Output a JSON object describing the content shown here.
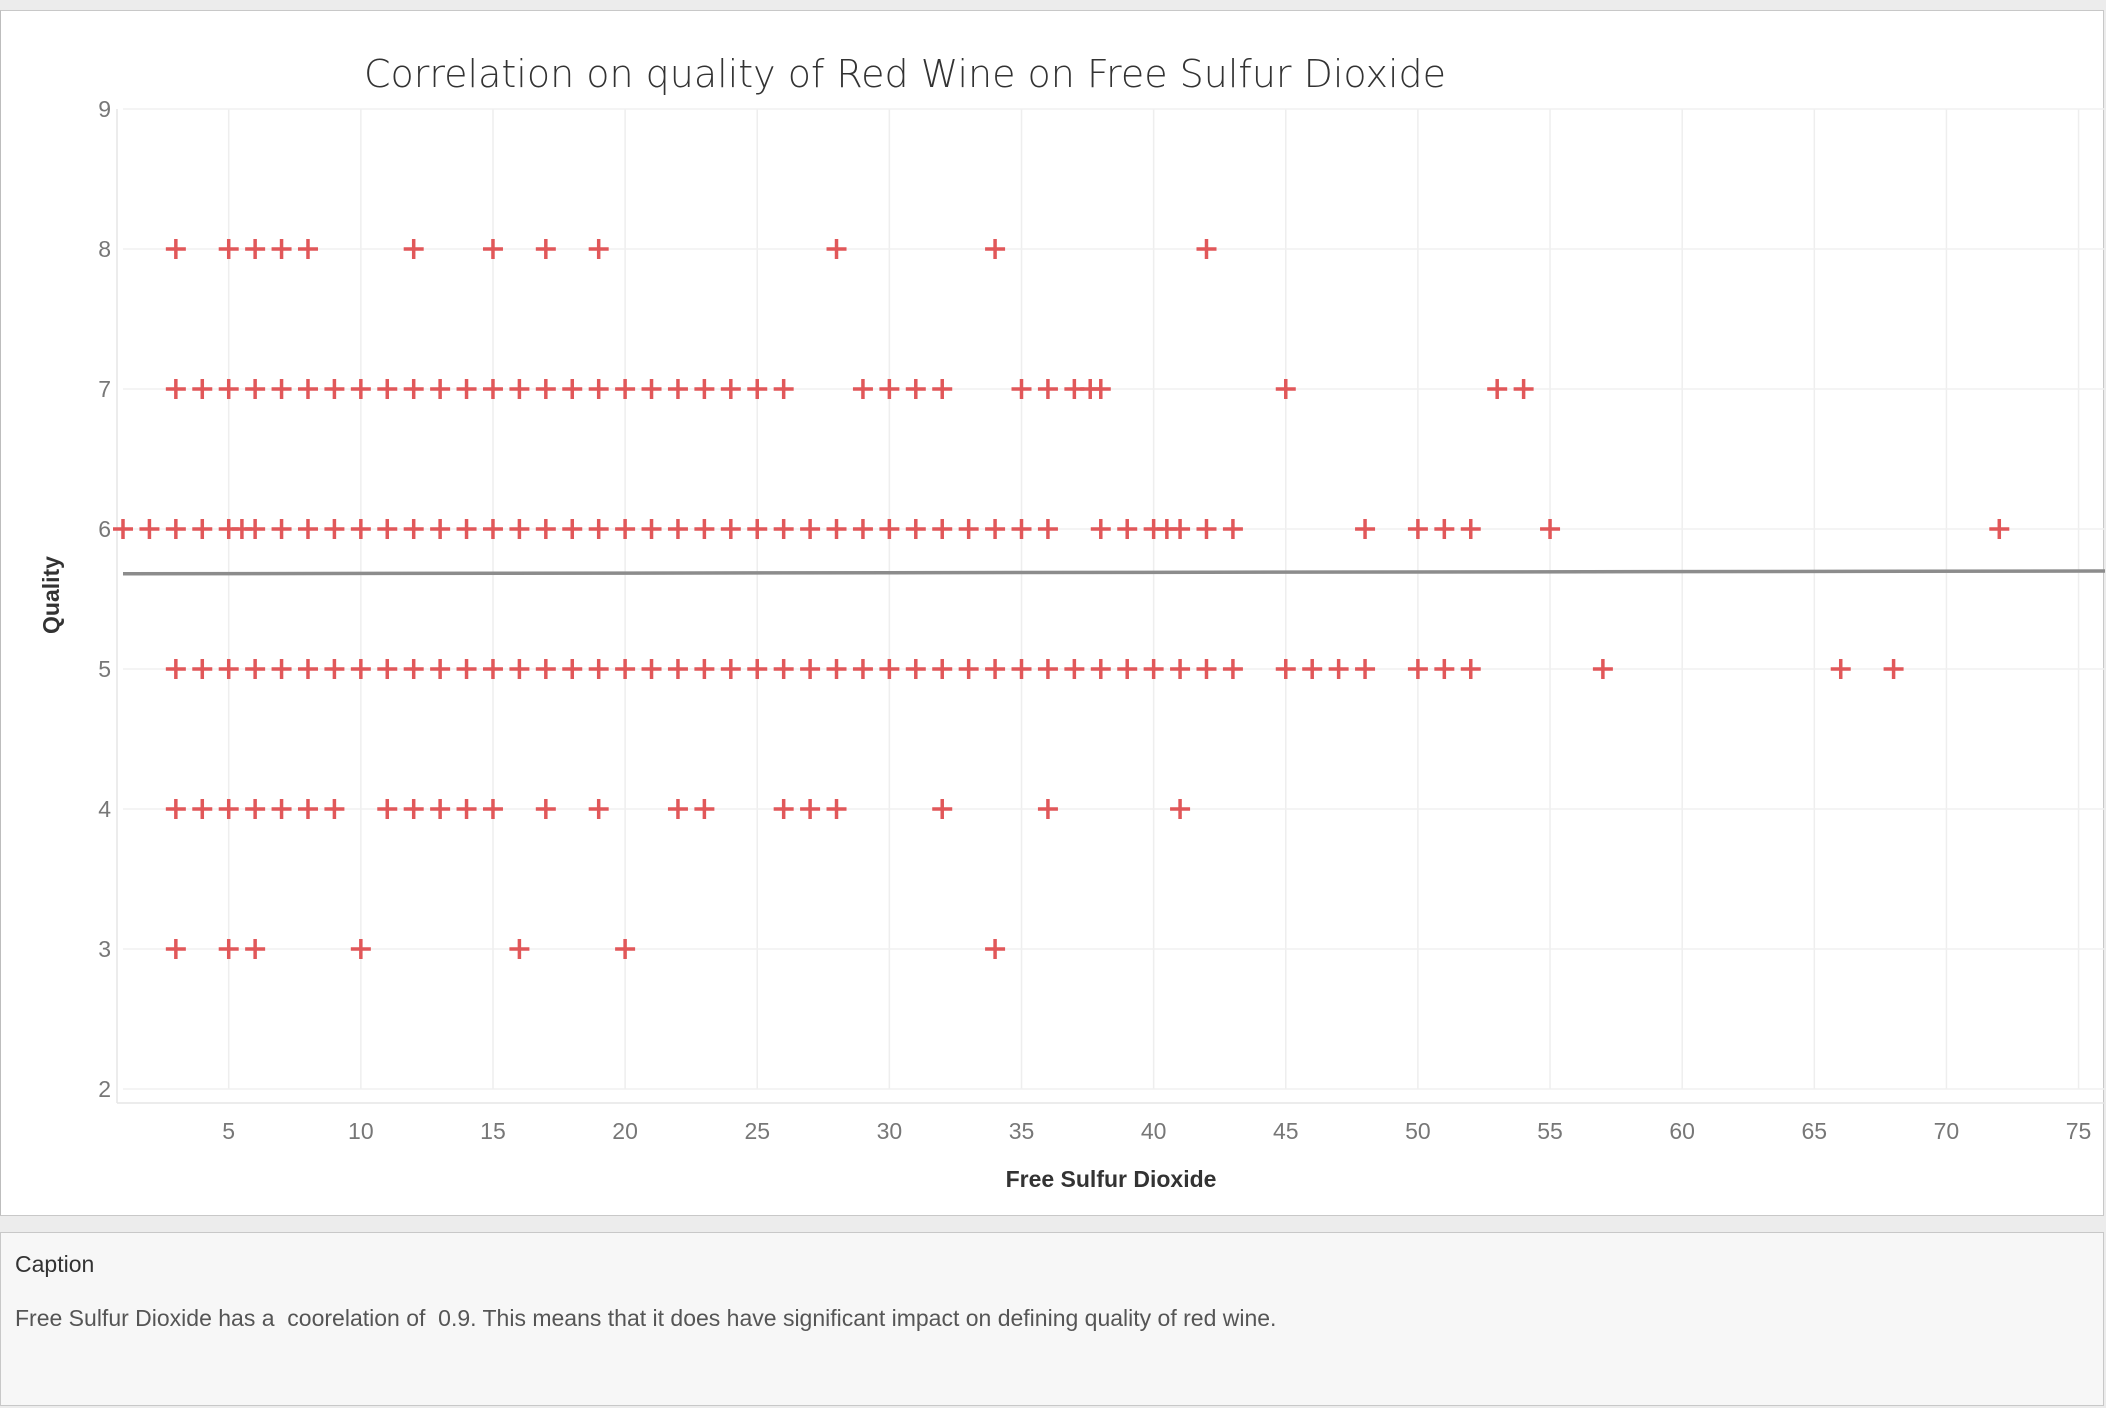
{
  "chart_data": {
    "type": "scatter",
    "title": "Correlation on quality of Red Wine on Free Sulfur Dioxide",
    "xlabel": "Free Sulfur Dioxide",
    "ylabel": "Quality",
    "xlim": [
      1,
      76
    ],
    "ylim": [
      2,
      9
    ],
    "xticks": [
      5,
      10,
      15,
      20,
      25,
      30,
      35,
      40,
      45,
      50,
      55,
      60,
      65,
      70,
      75
    ],
    "yticks": [
      2,
      3,
      4,
      5,
      6,
      7,
      8,
      9
    ],
    "grid": true,
    "marker": "plus",
    "marker_color": "#e15759",
    "trend_line": {
      "x": [
        1,
        76
      ],
      "y": [
        5.68,
        5.7
      ],
      "color": "#8c8c8c"
    },
    "points": [
      {
        "quality": 8,
        "x": [
          3,
          5,
          6,
          7,
          8,
          12,
          15,
          17,
          19,
          28,
          34,
          42
        ]
      },
      {
        "quality": 7,
        "x": [
          3,
          4,
          5,
          6,
          7,
          8,
          9,
          10,
          11,
          12,
          13,
          14,
          15,
          16,
          17,
          18,
          19,
          20,
          21,
          22,
          23,
          24,
          25,
          26,
          29,
          30,
          31,
          32,
          35,
          36,
          37,
          37.6,
          38,
          45,
          53,
          54
        ]
      },
      {
        "quality": 6,
        "x": [
          1,
          2,
          3,
          4,
          5,
          5.5,
          6,
          7,
          8,
          9,
          10,
          11,
          12,
          13,
          14,
          15,
          16,
          17,
          18,
          19,
          20,
          21,
          22,
          23,
          24,
          25,
          26,
          27,
          28,
          29,
          30,
          31,
          32,
          33,
          34,
          35,
          36,
          38,
          39,
          40,
          40.5,
          41,
          42,
          43,
          48,
          50,
          51,
          52,
          55,
          72
        ]
      },
      {
        "quality": 5,
        "x": [
          3,
          4,
          5,
          6,
          7,
          8,
          9,
          10,
          11,
          12,
          13,
          14,
          15,
          16,
          17,
          18,
          19,
          20,
          21,
          22,
          23,
          24,
          25,
          26,
          27,
          28,
          29,
          30,
          31,
          32,
          33,
          34,
          35,
          36,
          37,
          38,
          39,
          40,
          41,
          42,
          43,
          45,
          46,
          47,
          48,
          50,
          51,
          52,
          57,
          66,
          68
        ]
      },
      {
        "quality": 4,
        "x": [
          3,
          4,
          5,
          6,
          7,
          8,
          9,
          11,
          12,
          13,
          14,
          15,
          17,
          19,
          22,
          23,
          26,
          27,
          28,
          32,
          36,
          41
        ]
      },
      {
        "quality": 3,
        "x": [
          3,
          5,
          6,
          10,
          16,
          20,
          34
        ]
      }
    ]
  },
  "caption": {
    "heading": "Caption",
    "text": "Free Sulfur Dioxide has a  coorelation of  0.9. This means that it does have significant impact on defining quality of red wine."
  }
}
